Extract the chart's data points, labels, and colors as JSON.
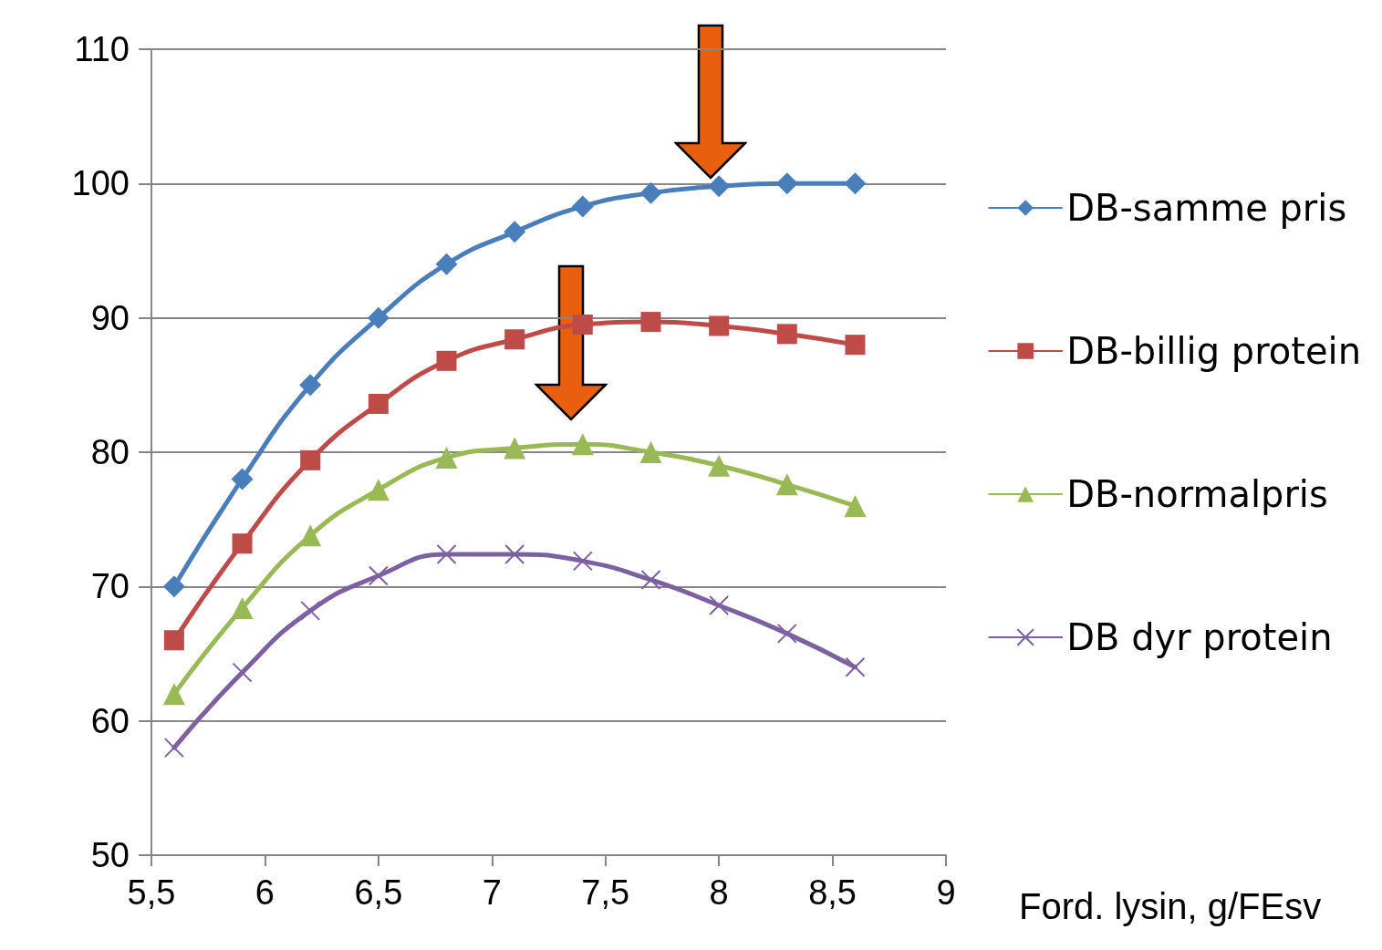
{
  "chart_data": {
    "type": "line",
    "xlabel": "Ford. lysin, g/FEsv",
    "x": [
      5.6,
      5.9,
      6.2,
      6.5,
      6.8,
      7.1,
      7.4,
      7.7,
      8.0,
      8.3,
      8.6
    ],
    "series": [
      {
        "name": "DB-samme pris",
        "color": "#4a7ebb",
        "marker": "diamond",
        "values": [
          70,
          78,
          85,
          90,
          94,
          96.4,
          98.3,
          99.3,
          99.8,
          100,
          100
        ]
      },
      {
        "name": "DB-billig protein",
        "color": "#be4b48",
        "marker": "square",
        "values": [
          66,
          73.2,
          79.4,
          83.6,
          86.8,
          88.4,
          89.5,
          89.7,
          89.4,
          88.8,
          88.0
        ]
      },
      {
        "name": "DB-normalpris",
        "color": "#98b954",
        "marker": "triangle",
        "values": [
          62,
          68.4,
          73.8,
          77.2,
          79.6,
          80.3,
          80.6,
          80.0,
          79.0,
          77.6,
          76.0
        ]
      },
      {
        "name": "DB dyr protein",
        "color": "#7d60a0",
        "marker": "cross",
        "values": [
          58,
          63.6,
          68.2,
          70.8,
          72.4,
          72.4,
          71.9,
          70.5,
          68.6,
          66.5,
          64.0
        ]
      }
    ],
    "xlim": [
      5.5,
      9
    ],
    "xticks": [
      {
        "value": 5.5,
        "label": "5,5"
      },
      6,
      {
        "value": 6.5,
        "label": "6,5"
      },
      7,
      {
        "value": 7.5,
        "label": "7,5"
      },
      8,
      {
        "value": 8.5,
        "label": "8,5"
      },
      9
    ],
    "ylim": [
      50,
      110
    ],
    "yticks": [
      50,
      60,
      70,
      80,
      90,
      100,
      110
    ],
    "grid": "y",
    "legend": "right",
    "line_style": "solid"
  }
}
